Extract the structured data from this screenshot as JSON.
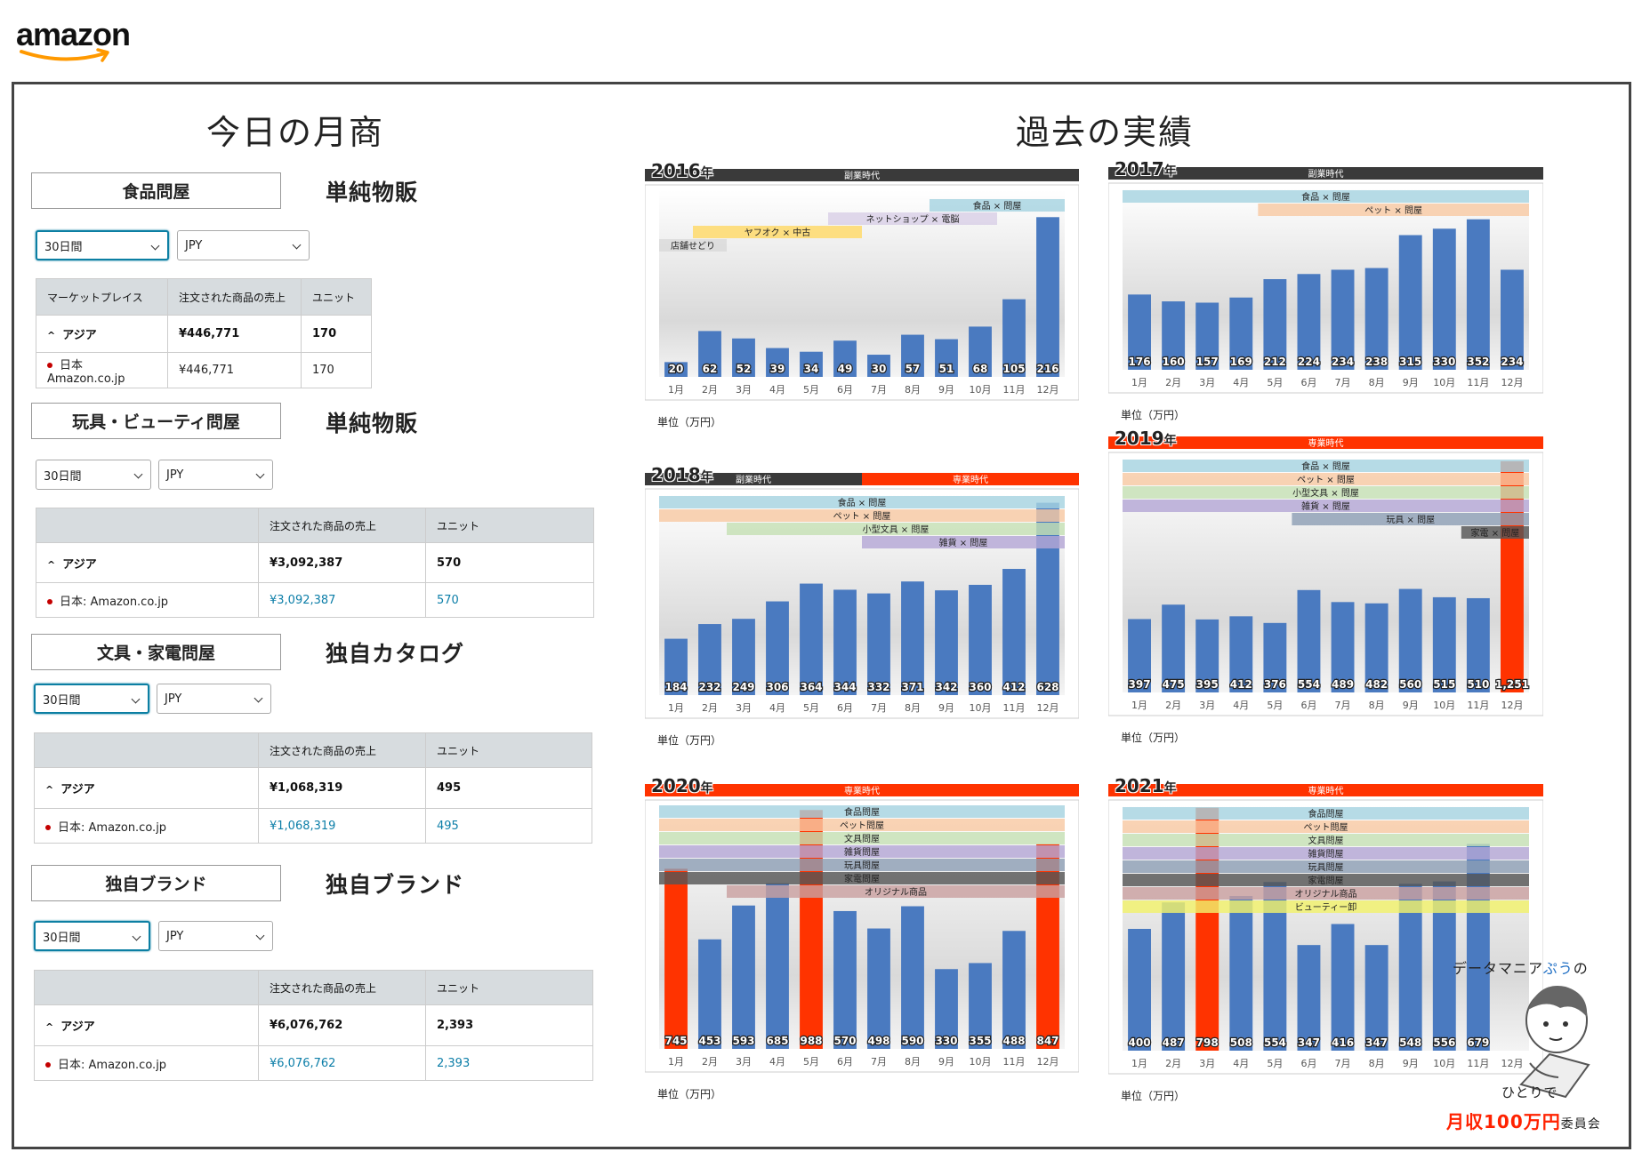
{
  "header": {
    "logo_text": "amazon"
  },
  "left": {
    "title": "今日の月商",
    "categories": [
      {
        "name": "食品問屋",
        "type": "単純物販",
        "period": "30日間",
        "currency": "JPY",
        "col_market": "マーケットプレイス",
        "col_sales": "注文された商品の売上",
        "col_units": "ユニット",
        "region": "アジア",
        "region_sales": "¥446,771",
        "region_units": "170",
        "store": "日本 Amazon.co.jp",
        "store_sales": "¥446,771",
        "store_units": "170"
      },
      {
        "name": "玩具・ビューティ問屋",
        "type": "単純物販",
        "period": "30日間",
        "currency": "JPY",
        "col_market": "",
        "col_sales": "注文された商品の売上",
        "col_units": "ユニット",
        "region": "アジア",
        "region_sales": "¥3,092,387",
        "region_units": "570",
        "store": "日本: Amazon.co.jp",
        "store_sales": "¥3,092,387",
        "store_units": "570"
      },
      {
        "name": "文具・家電問屋",
        "type": "独自カタログ",
        "period": "30日間",
        "currency": "JPY",
        "col_market": "",
        "col_sales": "注文された商品の売上",
        "col_units": "ユニット",
        "region": "アジア",
        "region_sales": "¥1,068,319",
        "region_units": "495",
        "store": "日本: Amazon.co.jp",
        "store_sales": "¥1,068,319",
        "store_units": "495"
      },
      {
        "name": "独自ブランド",
        "type": "独自ブランド",
        "period": "30日間",
        "currency": "JPY",
        "col_market": "",
        "col_sales": "注文された商品の売上",
        "col_units": "ユニット",
        "region": "アジア",
        "region_sales": "¥6,076,762",
        "region_units": "2,393",
        "store": "日本: Amazon.co.jp",
        "store_sales": "¥6,076,762",
        "store_units": "2,393"
      }
    ]
  },
  "right": {
    "title": "過去の実績"
  },
  "colors": {
    "bar_blue": "#4a7ac0",
    "bar_red": "#ff3300",
    "band_dark": "#3a3a3a",
    "band_red": "#ff3300"
  },
  "chart_data": [
    {
      "type": "bar",
      "year": "2016",
      "year_suffix": "年",
      "unit_label": "単位（万円）",
      "categories": [
        "1月",
        "2月",
        "3月",
        "4月",
        "5月",
        "6月",
        "7月",
        "8月",
        "9月",
        "10月",
        "11月",
        "12月"
      ],
      "values": [
        20,
        62,
        52,
        39,
        34,
        49,
        30,
        57,
        51,
        68,
        105,
        216
      ],
      "value_labels": [
        "20",
        "62",
        "52",
        "39",
        "34",
        "49",
        "30",
        "57",
        "51",
        "68",
        "105",
        "216"
      ],
      "highlight": [],
      "eras": [
        {
          "label": "副業時代",
          "color": "#3a3a3a",
          "from": 1,
          "to": 12
        }
      ],
      "business_labels": [
        {
          "label": "食品 × 問屋",
          "color": "#a6d3e0",
          "from": 9,
          "to": 12
        },
        {
          "label": "ネットショップ × 電脳",
          "color": "#d9d0e6",
          "from": 6,
          "to": 10
        },
        {
          "label": "ヤフオク × 中古",
          "color": "#ffd966",
          "from": 2,
          "to": 6
        },
        {
          "label": "店舗せどり",
          "color": "#d9d9d9",
          "from": 1,
          "to": 2
        }
      ]
    },
    {
      "type": "bar",
      "year": "2017",
      "year_suffix": "年",
      "unit_label": "単位（万円）",
      "categories": [
        "1月",
        "2月",
        "3月",
        "4月",
        "5月",
        "6月",
        "7月",
        "8月",
        "9月",
        "10月",
        "11月",
        "12月"
      ],
      "values": [
        176,
        160,
        157,
        169,
        212,
        224,
        234,
        238,
        315,
        330,
        352,
        234
      ],
      "value_labels": [
        "176",
        "160",
        "157",
        "169",
        "212",
        "224",
        "234",
        "238",
        "315",
        "330",
        "352",
        "234"
      ],
      "highlight": [],
      "eras": [
        {
          "label": "副業時代",
          "color": "#3a3a3a",
          "from": 1,
          "to": 12
        }
      ],
      "business_labels": [
        {
          "label": "食品 × 問屋",
          "color": "#a6d3e0",
          "from": 1,
          "to": 12
        },
        {
          "label": "ペット × 問屋",
          "color": "#f8c9a4",
          "from": 5,
          "to": 12
        }
      ]
    },
    {
      "type": "bar",
      "year": "2018",
      "year_suffix": "年",
      "unit_label": "単位（万円）",
      "categories": [
        "1月",
        "2月",
        "3月",
        "4月",
        "5月",
        "6月",
        "7月",
        "8月",
        "9月",
        "10月",
        "11月",
        "12月"
      ],
      "values": [
        184,
        232,
        249,
        306,
        364,
        344,
        332,
        371,
        342,
        360,
        412,
        628
      ],
      "value_labels": [
        "184",
        "232",
        "249",
        "306",
        "364",
        "344",
        "332",
        "371",
        "342",
        "360",
        "412",
        "628"
      ],
      "highlight": [],
      "eras": [
        {
          "label": "副業時代",
          "color": "#3a3a3a",
          "from": 1,
          "to": 6
        },
        {
          "label": "専業時代",
          "color": "#ff3300",
          "from": 7,
          "to": 12
        }
      ],
      "business_labels": [
        {
          "label": "食品 × 問屋",
          "color": "#a6d3e0",
          "from": 1,
          "to": 12
        },
        {
          "label": "ペット × 問屋",
          "color": "#f8c9a4",
          "from": 1,
          "to": 12
        },
        {
          "label": "小型文具 × 問屋",
          "color": "#c6e0b4",
          "from": 3,
          "to": 12
        },
        {
          "label": "雑貨 × 問屋",
          "color": "#b4a7d6",
          "from": 7,
          "to": 12
        }
      ]
    },
    {
      "type": "bar",
      "year": "2019",
      "year_suffix": "年",
      "unit_label": "単位（万円）",
      "categories": [
        "1月",
        "2月",
        "3月",
        "4月",
        "5月",
        "6月",
        "7月",
        "8月",
        "9月",
        "10月",
        "11月",
        "12月"
      ],
      "values": [
        397,
        475,
        395,
        412,
        376,
        554,
        489,
        482,
        560,
        515,
        510,
        1251
      ],
      "value_labels": [
        "397",
        "475",
        "395",
        "412",
        "376",
        "554",
        "489",
        "482",
        "560",
        "515",
        "510",
        "1,251"
      ],
      "highlight": [
        12
      ],
      "eras": [
        {
          "label": "専業時代",
          "color": "#ff3300",
          "from": 1,
          "to": 12
        }
      ],
      "business_labels": [
        {
          "label": "食品 × 問屋",
          "color": "#a6d3e0",
          "from": 1,
          "to": 12
        },
        {
          "label": "ペット × 問屋",
          "color": "#f8c9a4",
          "from": 1,
          "to": 12
        },
        {
          "label": "小型文具 × 問屋",
          "color": "#c6e0b4",
          "from": 1,
          "to": 12
        },
        {
          "label": "雑貨 × 問屋",
          "color": "#b4a7d6",
          "from": 1,
          "to": 12
        },
        {
          "label": "玩具 × 問屋",
          "color": "#8e9fb5",
          "from": 6,
          "to": 12
        },
        {
          "label": "家電 × 問屋",
          "color": "#555555",
          "from": 11,
          "to": 12
        }
      ]
    },
    {
      "type": "bar",
      "year": "2020",
      "year_suffix": "年",
      "unit_label": "単位（万円）",
      "categories": [
        "1月",
        "2月",
        "3月",
        "4月",
        "5月",
        "6月",
        "7月",
        "8月",
        "9月",
        "10月",
        "11月",
        "12月"
      ],
      "values": [
        745,
        453,
        593,
        685,
        988,
        570,
        498,
        590,
        330,
        355,
        488,
        847
      ],
      "value_labels": [
        "745",
        "453",
        "593",
        "685",
        "988",
        "570",
        "498",
        "590",
        "330",
        "355",
        "488",
        "847"
      ],
      "highlight": [
        1,
        5,
        12
      ],
      "eras": [
        {
          "label": "専業時代",
          "color": "#ff3300",
          "from": 1,
          "to": 12
        }
      ],
      "business_labels": [
        {
          "label": "食品問屋",
          "color": "#a6d3e0",
          "from": 1,
          "to": 12
        },
        {
          "label": "ペット問屋",
          "color": "#f8c9a4",
          "from": 1,
          "to": 12
        },
        {
          "label": "文具問屋",
          "color": "#c6e0b4",
          "from": 1,
          "to": 12
        },
        {
          "label": "雑貨問屋",
          "color": "#b4a7d6",
          "from": 1,
          "to": 12
        },
        {
          "label": "玩具問屋",
          "color": "#8e9fb5",
          "from": 1,
          "to": 12
        },
        {
          "label": "家電問屋",
          "color": "#555555",
          "from": 1,
          "to": 12
        },
        {
          "label": "オリジナル商品",
          "color": "#c9a0a0",
          "from": 3,
          "to": 12
        }
      ]
    },
    {
      "type": "bar",
      "year": "2021",
      "year_suffix": "年",
      "unit_label": "単位（万円）",
      "categories": [
        "1月",
        "2月",
        "3月",
        "4月",
        "5月",
        "6月",
        "7月",
        "8月",
        "9月",
        "10月",
        "11月",
        "12月"
      ],
      "values": [
        400,
        487,
        798,
        508,
        554,
        347,
        416,
        347,
        548,
        556,
        679,
        null
      ],
      "value_labels": [
        "400",
        "487",
        "798",
        "508",
        "554",
        "347",
        "416",
        "347",
        "548",
        "556",
        "679",
        ""
      ],
      "highlight": [
        3
      ],
      "eras": [
        {
          "label": "専業時代",
          "color": "#ff3300",
          "from": 1,
          "to": 12
        }
      ],
      "business_labels": [
        {
          "label": "食品問屋",
          "color": "#a6d3e0",
          "from": 1,
          "to": 12
        },
        {
          "label": "ペット問屋",
          "color": "#f8c9a4",
          "from": 1,
          "to": 12
        },
        {
          "label": "文具問屋",
          "color": "#c6e0b4",
          "from": 1,
          "to": 12
        },
        {
          "label": "雑貨問屋",
          "color": "#b4a7d6",
          "from": 1,
          "to": 12
        },
        {
          "label": "玩具問屋",
          "color": "#8e9fb5",
          "from": 1,
          "to": 12
        },
        {
          "label": "家電問屋",
          "color": "#555555",
          "from": 1,
          "to": 12
        },
        {
          "label": "オリジナル商品",
          "color": "#c9a0a0",
          "from": 1,
          "to": 12
        },
        {
          "label": "ビューティー卸",
          "color": "#f2f26b",
          "from": 1,
          "to": 12
        }
      ]
    }
  ],
  "watermark": {
    "line1a": "データマニア",
    "line1b": "ぷう",
    "line1c": "の",
    "line2": "ひとりで",
    "line3a": "月収100万円",
    "line3b": "委員会"
  }
}
